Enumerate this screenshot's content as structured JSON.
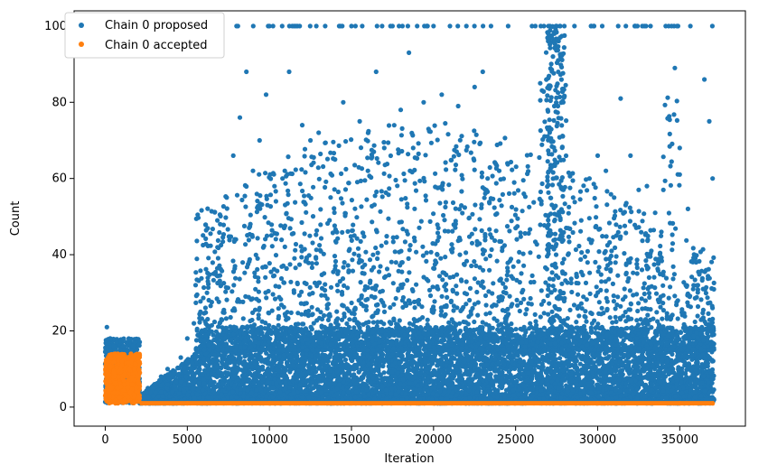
{
  "chart_data": {
    "type": "scatter",
    "title": "",
    "xlabel": "Iteration",
    "ylabel": "Count",
    "xlim": [
      -1900,
      39000
    ],
    "ylim": [
      -5,
      104
    ],
    "xticks": [
      0,
      5000,
      10000,
      15000,
      20000,
      25000,
      30000,
      35000
    ],
    "yticks": [
      0,
      20,
      40,
      60,
      80,
      100
    ],
    "grid": false,
    "legend_position": "top-left",
    "series": [
      {
        "name": "Chain 0 proposed",
        "color": "#1f77b4",
        "note_points": "dense scatter; representative sample",
        "x": [
          100,
          300,
          500,
          700,
          900,
          1100,
          1300,
          1500,
          1700,
          1900,
          200,
          600,
          1000,
          1400,
          1800,
          2200,
          2600,
          3000,
          3400,
          3800,
          4200,
          4600,
          5000,
          5400,
          5800,
          6200,
          6600,
          7000,
          7400,
          7800,
          8000,
          8200,
          8600,
          9000,
          9400,
          9800,
          10000,
          10400,
          10800,
          11200,
          11700,
          12000,
          12500,
          13000,
          13400,
          14000,
          14500,
          15000,
          15500,
          16000,
          16500,
          17000,
          17500,
          18000,
          18500,
          19000,
          19400,
          20000,
          20500,
          21000,
          21500,
          22000,
          22500,
          23000,
          23500,
          24000,
          24500,
          25000,
          25500,
          26000,
          26500,
          27000,
          27300,
          27500,
          27700,
          27900,
          28500,
          29000,
          29500,
          30000,
          30500,
          31000,
          31400,
          32000,
          32500,
          33000,
          33500,
          34000,
          34500,
          34700,
          35000,
          35500,
          36000,
          36500,
          36800,
          37000
        ],
        "y": [
          21,
          18,
          16,
          17,
          15,
          16,
          17,
          14,
          16,
          15,
          13,
          12,
          14,
          13,
          12,
          3,
          5,
          6,
          8,
          10,
          9,
          13,
          18,
          22,
          25,
          30,
          35,
          48,
          55,
          66,
          100,
          76,
          88,
          62,
          70,
          82,
          100,
          54,
          60,
          88,
          100,
          74,
          70,
          72,
          100,
          65,
          80,
          100,
          75,
          62,
          88,
          68,
          100,
          78,
          93,
          100,
          80,
          100,
          82,
          100,
          79,
          100,
          84,
          88,
          100,
          62,
          64,
          47,
          56,
          100,
          85,
          100,
          96,
          100,
          100,
          80,
          55,
          49,
          60,
          66,
          62,
          55,
          81,
          66,
          57,
          58,
          51,
          57,
          100,
          89,
          68,
          52,
          38,
          86,
          75,
          60
        ],
        "y_floor": 1,
        "y_bulk_max": 20
      },
      {
        "name": "Chain 0 accepted",
        "color": "#ff7f0e",
        "note_points": "early block 0-2100 spans 1-14; thereafter constant at 1",
        "x": [
          0,
          200,
          400,
          600,
          800,
          1000,
          1200,
          1400,
          1600,
          1800,
          2000,
          2100,
          5000,
          10000,
          15000,
          20000,
          25000,
          30000,
          35000,
          37000
        ],
        "y": [
          3,
          12,
          5,
          14,
          8,
          11,
          2,
          13,
          6,
          10,
          4,
          9,
          1,
          1,
          1,
          1,
          1,
          1,
          1,
          1
        ]
      }
    ]
  }
}
